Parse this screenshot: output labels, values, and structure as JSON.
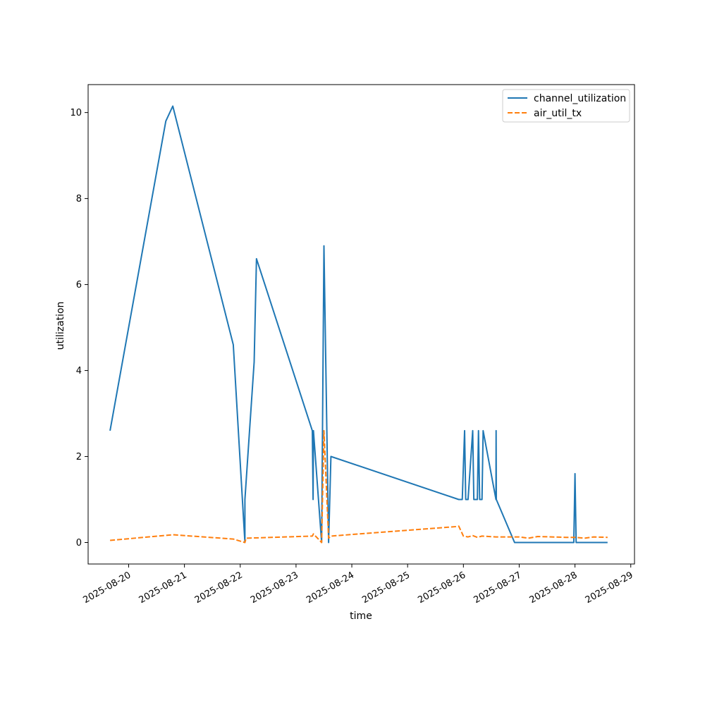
{
  "chart_data": {
    "type": "line",
    "title": "",
    "xlabel": "time",
    "ylabel": "utilization",
    "xlim": [
      "2025-08-19T06:34",
      "2025-08-29T01:36"
    ],
    "ylim": [
      -0.5,
      10.65
    ],
    "x_ticks": [
      "2025-08-20",
      "2025-08-21",
      "2025-08-22",
      "2025-08-23",
      "2025-08-24",
      "2025-08-25",
      "2025-08-26",
      "2025-08-27",
      "2025-08-28",
      "2025-08-29"
    ],
    "y_ticks": [
      0,
      2,
      4,
      6,
      8,
      10
    ],
    "grid": false,
    "legend_position": "top-right",
    "series": [
      {
        "name": "channel_utilization",
        "color": "#1f77b4",
        "dash": "solid",
        "points": [
          [
            "2025-08-19T16:00",
            2.6
          ],
          [
            "2025-08-20T16:00",
            9.8
          ],
          [
            "2025-08-20T19:00",
            10.15
          ],
          [
            "2025-08-21T21:00",
            4.6
          ],
          [
            "2025-08-22T02:00",
            0.0
          ],
          [
            "2025-08-22T02:00",
            1.0
          ],
          [
            "2025-08-22T06:00",
            4.2
          ],
          [
            "2025-08-22T07:00",
            6.6
          ],
          [
            "2025-08-23T07:00",
            2.6
          ],
          [
            "2025-08-23T07:20",
            1.0
          ],
          [
            "2025-08-23T07:30",
            2.6
          ],
          [
            "2025-08-23T11:00",
            0.0
          ],
          [
            "2025-08-23T12:00",
            6.9
          ],
          [
            "2025-08-23T14:00",
            0.0
          ],
          [
            "2025-08-23T15:00",
            2.0
          ],
          [
            "2025-08-25T22:00",
            1.0
          ],
          [
            "2025-08-25T23:30",
            1.0
          ],
          [
            "2025-08-26T00:30",
            2.6
          ],
          [
            "2025-08-26T01:00",
            1.0
          ],
          [
            "2025-08-26T02:00",
            1.0
          ],
          [
            "2025-08-26T04:00",
            2.6
          ],
          [
            "2025-08-26T04:30",
            1.0
          ],
          [
            "2025-08-26T06:00",
            1.0
          ],
          [
            "2025-08-26T06:30",
            2.6
          ],
          [
            "2025-08-26T07:00",
            1.0
          ],
          [
            "2025-08-26T08:00",
            1.0
          ],
          [
            "2025-08-26T08:30",
            2.6
          ],
          [
            "2025-08-26T14:00",
            1.0
          ],
          [
            "2025-08-26T14:05",
            2.6
          ],
          [
            "2025-08-26T14:10",
            1.0
          ],
          [
            "2025-08-26T22:00",
            0.0
          ],
          [
            "2025-08-27T23:30",
            0.0
          ],
          [
            "2025-08-28T00:00",
            1.6
          ],
          [
            "2025-08-28T00:30",
            0.0
          ],
          [
            "2025-08-28T14:00",
            0.0
          ]
        ]
      },
      {
        "name": "air_util_tx",
        "color": "#ff7f0e",
        "dash": "dashed",
        "points": [
          [
            "2025-08-19T16:00",
            0.05
          ],
          [
            "2025-08-20T19:00",
            0.18
          ],
          [
            "2025-08-21T21:00",
            0.08
          ],
          [
            "2025-08-22T02:00",
            0.0
          ],
          [
            "2025-08-22T02:30",
            0.1
          ],
          [
            "2025-08-23T07:00",
            0.15
          ],
          [
            "2025-08-23T07:30",
            0.2
          ],
          [
            "2025-08-23T11:00",
            0.0
          ],
          [
            "2025-08-23T12:00",
            2.6
          ],
          [
            "2025-08-23T14:00",
            0.1
          ],
          [
            "2025-08-23T15:00",
            0.15
          ],
          [
            "2025-08-25T21:00",
            0.37
          ],
          [
            "2025-08-25T22:00",
            0.38
          ],
          [
            "2025-08-26T00:00",
            0.15
          ],
          [
            "2025-08-26T02:00",
            0.13
          ],
          [
            "2025-08-26T04:00",
            0.16
          ],
          [
            "2025-08-26T06:00",
            0.12
          ],
          [
            "2025-08-26T08:00",
            0.15
          ],
          [
            "2025-08-26T14:00",
            0.13
          ],
          [
            "2025-08-27T00:00",
            0.13
          ],
          [
            "2025-08-27T04:00",
            0.1
          ],
          [
            "2025-08-27T08:00",
            0.14
          ],
          [
            "2025-08-27T20:00",
            0.12
          ],
          [
            "2025-08-28T00:00",
            0.12
          ],
          [
            "2025-08-28T04:00",
            0.1
          ],
          [
            "2025-08-28T08:00",
            0.13
          ],
          [
            "2025-08-28T14:00",
            0.12
          ]
        ]
      }
    ]
  }
}
